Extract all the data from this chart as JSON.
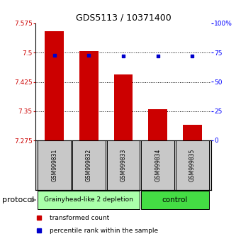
{
  "title": "GDS5113 / 10371400",
  "samples": [
    "GSM999831",
    "GSM999832",
    "GSM999833",
    "GSM999834",
    "GSM999835"
  ],
  "bar_values": [
    7.555,
    7.505,
    7.445,
    7.355,
    7.315
  ],
  "bar_bottom": 7.275,
  "percentile_values": [
    73.0,
    72.5,
    72.0,
    72.0,
    72.0
  ],
  "ylim_left": [
    7.275,
    7.575
  ],
  "ylim_right": [
    0,
    100
  ],
  "yticks_left": [
    7.275,
    7.35,
    7.425,
    7.5,
    7.575
  ],
  "ytick_labels_left": [
    "7.275",
    "7.35",
    "7.425",
    "7.5",
    "7.575"
  ],
  "yticks_right": [
    0,
    25,
    50,
    75,
    100
  ],
  "ytick_labels_right": [
    "0",
    "25",
    "50",
    "75",
    "100%"
  ],
  "bar_color": "#cc0000",
  "percentile_color": "#0000cc",
  "bar_width": 0.55,
  "group_label": "protocol",
  "dotted_yticks": [
    7.35,
    7.425,
    7.5
  ],
  "group1_label": "Grainyhead-like 2 depletion",
  "group1_color": "#aaffaa",
  "group1_x_start": 0,
  "group1_x_end": 2,
  "group2_label": "control",
  "group2_color": "#44dd44",
  "group2_x_start": 3,
  "group2_x_end": 4,
  "legend_label1": "transformed count",
  "legend_label2": "percentile rank within the sample",
  "legend_color1": "#cc0000",
  "legend_color2": "#0000cc",
  "xlim": [
    -0.55,
    4.55
  ],
  "sample_box_color": "#c8c8c8",
  "title_fontsize": 9,
  "axis_fontsize": 7,
  "tick_fontsize": 6.5,
  "sample_fontsize": 5.5,
  "group_fontsize": 6.5,
  "legend_fontsize": 6.5,
  "protocol_fontsize": 8
}
